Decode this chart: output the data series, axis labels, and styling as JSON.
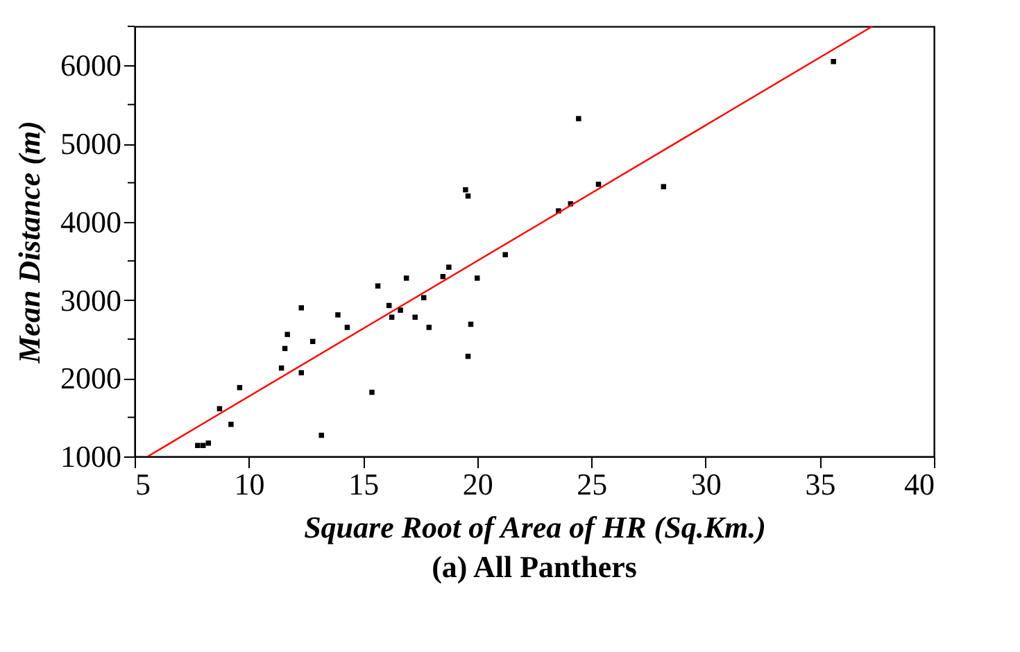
{
  "chart_data": {
    "type": "scatter",
    "title": "(a) All Panthers",
    "xlabel": "Square Root of Area of HR (Sq.Km.)",
    "ylabel": "Mean Distance (m)",
    "xlim": [
      5,
      40
    ],
    "xticks": [
      5,
      10,
      15,
      20,
      25,
      30,
      35,
      40
    ],
    "ylim": [
      1000,
      6500
    ],
    "yticks": [
      1000,
      {
        "value": 1500,
        "label": null
      },
      2000,
      {
        "value": 2500,
        "label": null
      },
      3000,
      {
        "value": 3500,
        "label": null
      },
      4000,
      {
        "value": 4500,
        "label": null
      },
      5000,
      {
        "value": 5500,
        "label": null
      },
      6000,
      {
        "value": 6500,
        "label": null
      }
    ],
    "grid": false,
    "marker": "square",
    "series": [
      {
        "color": "#000000",
        "x": [
          7.76,
          8.0,
          8.23,
          8.72,
          9.22,
          9.6,
          11.43,
          11.58,
          11.69,
          12.3,
          12.3,
          12.8,
          13.18,
          13.9,
          14.31,
          15.39,
          15.65,
          16.14,
          16.26,
          16.64,
          16.9,
          17.28,
          17.66,
          17.89,
          18.5,
          18.76,
          19.49,
          19.6,
          19.6,
          19.72,
          20.0,
          21.23,
          23.56,
          24.09,
          24.44,
          25.31,
          28.16,
          35.6
        ],
        "values": [
          1140,
          1140,
          1170,
          1610,
          1410,
          1880,
          2130,
          2380,
          2560,
          2900,
          2070,
          2470,
          1270,
          2810,
          2650,
          1820,
          3180,
          2930,
          2780,
          2870,
          3280,
          2780,
          3030,
          2650,
          3300,
          3420,
          4410,
          4330,
          2280,
          2690,
          3280,
          3580,
          4140,
          4230,
          5320,
          4480,
          4450,
          6050
        ]
      },
      {
        "type": "line",
        "marker": "none",
        "color": "#ff0000",
        "line_style": "solid",
        "x": [
          5.58,
          37.3
        ],
        "values": [
          1000,
          6500
        ]
      }
    ]
  }
}
